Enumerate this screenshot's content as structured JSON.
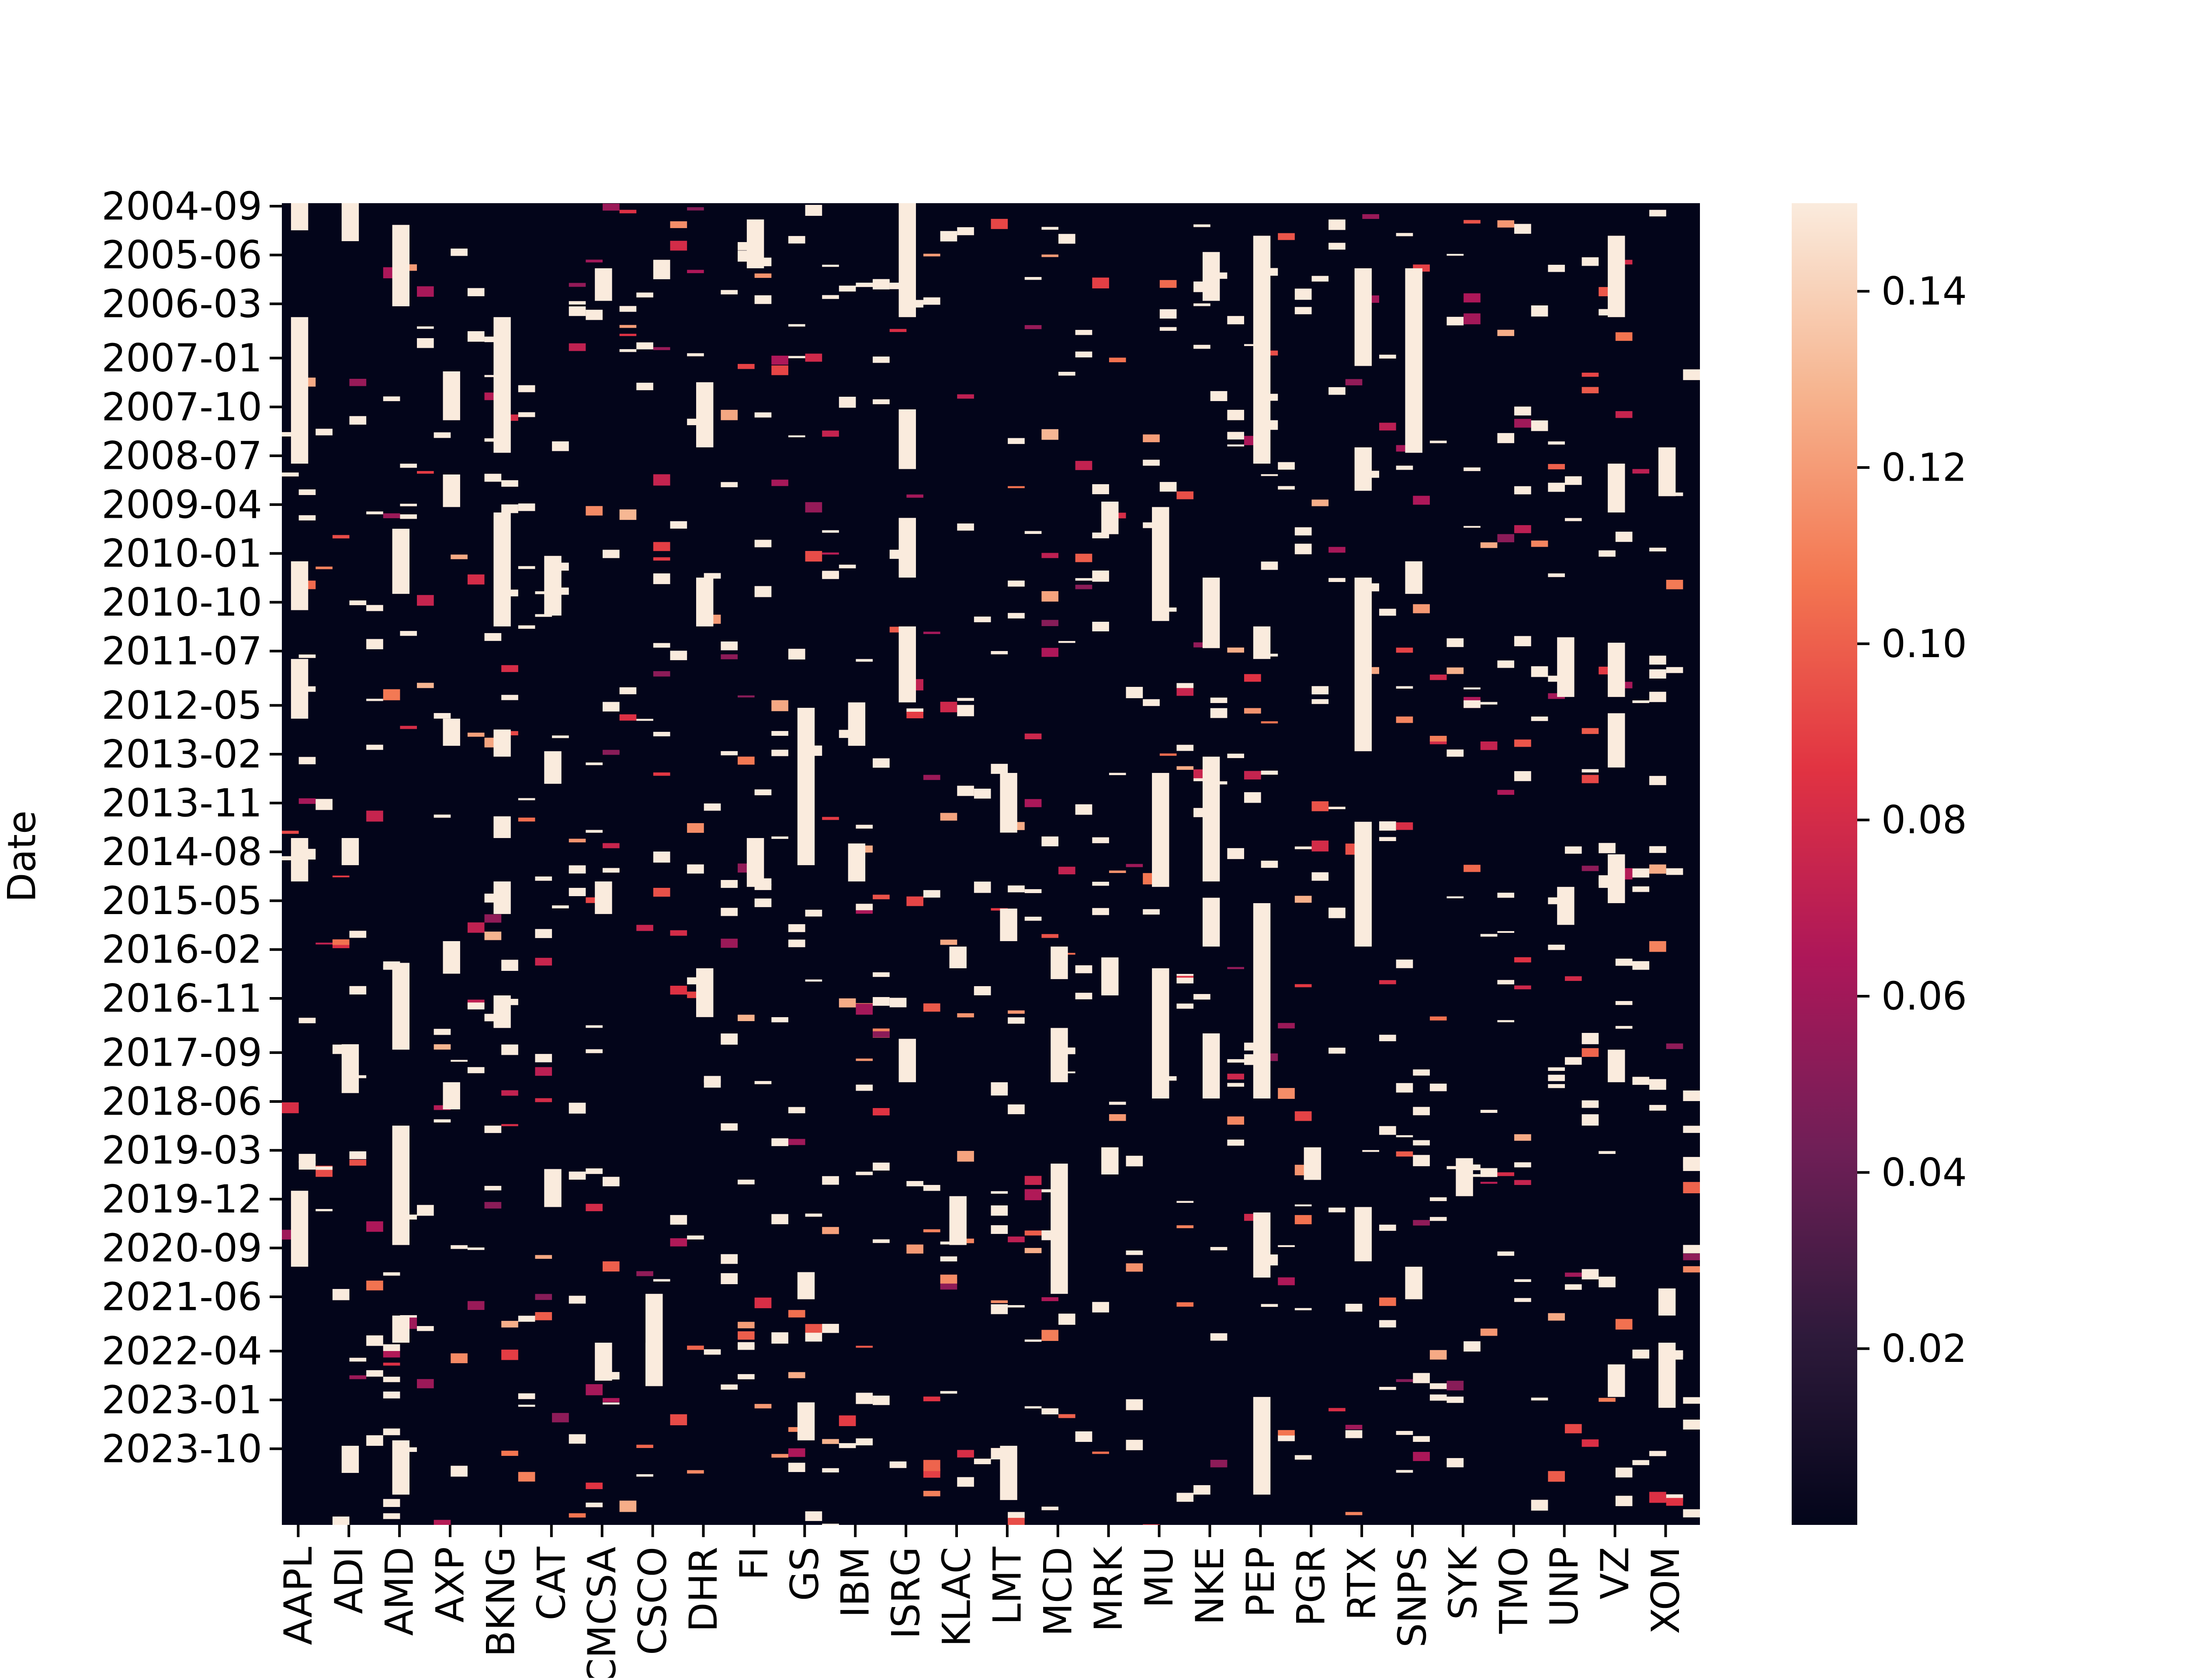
{
  "chart_data": {
    "type": "heatmap",
    "title": "",
    "xlabel": "",
    "ylabel": "Date",
    "x_tick_labels": [
      "AAPL",
      "ADI",
      "AMD",
      "AXP",
      "BKNG",
      "CAT",
      "CMCSA",
      "CSCO",
      "DHR",
      "FI",
      "GS",
      "IBM",
      "ISRG",
      "KLAC",
      "LMT",
      "MCD",
      "MRK",
      "MU",
      "NKE",
      "PEP",
      "PGR",
      "RTX",
      "SNPS",
      "SYK",
      "TMO",
      "UNP",
      "VZ",
      "XOM"
    ],
    "y_tick_labels": [
      "2004-09",
      "2005-06",
      "2006-03",
      "2007-01",
      "2007-10",
      "2008-07",
      "2009-04",
      "2010-01",
      "2010-10",
      "2011-07",
      "2012-05",
      "2013-02",
      "2013-11",
      "2014-08",
      "2015-05",
      "2016-02",
      "2016-11",
      "2017-09",
      "2018-06",
      "2019-03",
      "2019-12",
      "2020-09",
      "2021-06",
      "2022-04",
      "2023-01",
      "2023-10"
    ],
    "colorbar": {
      "ticks": [
        0.02,
        0.04,
        0.06,
        0.08,
        0.1,
        0.12,
        0.14
      ],
      "tick_labels": [
        "0.02",
        "0.04",
        "0.06",
        "0.08",
        "0.10",
        "0.12",
        "0.14"
      ],
      "vmin": 0.0,
      "vmax": 0.15,
      "colormap": "rocket",
      "colors": [
        "#03051a",
        "#2e1a3b",
        "#701f57",
        "#ad1759",
        "#e13342",
        "#f37651",
        "#f6b48f",
        "#faebdd"
      ]
    },
    "background_value": 0.0,
    "highlight_value": 0.15,
    "grid": false,
    "legend_placement": "colorbar-right",
    "features": [
      {
        "col": 0,
        "from": "2004-09",
        "to": "2005-02",
        "value": 0.15
      },
      {
        "col": 0,
        "from": "2006-06",
        "to": "2008-09",
        "value": 0.15
      },
      {
        "col": 0,
        "from": "2010-03",
        "to": "2010-12",
        "value": 0.15
      },
      {
        "col": 0,
        "from": "2011-09",
        "to": "2012-08",
        "value": 0.15
      },
      {
        "col": 0,
        "from": "2014-06",
        "to": "2015-02",
        "value": 0.15
      },
      {
        "col": 0,
        "from": "2019-11",
        "to": "2021-01",
        "value": 0.15
      },
      {
        "col": 1,
        "from": "2004-09",
        "to": "2005-04",
        "value": 0.15
      },
      {
        "col": 1,
        "from": "2014-06",
        "to": "2014-11",
        "value": 0.15
      },
      {
        "col": 1,
        "from": "2017-08",
        "to": "2018-05",
        "value": 0.15
      },
      {
        "col": 1,
        "from": "2023-10",
        "to": "2024-03",
        "value": 0.15
      },
      {
        "col": 2,
        "from": "2005-01",
        "to": "2006-04",
        "value": 0.15
      },
      {
        "col": 2,
        "from": "2009-09",
        "to": "2010-09",
        "value": 0.15
      },
      {
        "col": 2,
        "from": "2016-05",
        "to": "2017-09",
        "value": 0.15
      },
      {
        "col": 2,
        "from": "2018-11",
        "to": "2020-09",
        "value": 0.15
      },
      {
        "col": 2,
        "from": "2021-10",
        "to": "2022-03",
        "value": 0.15
      },
      {
        "col": 2,
        "from": "2023-09",
        "to": "2024-07",
        "value": 0.15
      },
      {
        "col": 3,
        "from": "2007-04",
        "to": "2008-01",
        "value": 0.15
      },
      {
        "col": 3,
        "from": "2008-11",
        "to": "2009-05",
        "value": 0.15
      },
      {
        "col": 3,
        "from": "2012-08",
        "to": "2013-01",
        "value": 0.15
      },
      {
        "col": 3,
        "from": "2016-01",
        "to": "2016-07",
        "value": 0.15
      },
      {
        "col": 3,
        "from": "2018-03",
        "to": "2018-08",
        "value": 0.15
      },
      {
        "col": 4,
        "from": "2006-06",
        "to": "2008-07",
        "value": 0.15
      },
      {
        "col": 4,
        "from": "2009-06",
        "to": "2011-03",
        "value": 0.15
      },
      {
        "col": 4,
        "from": "2012-10",
        "to": "2013-03",
        "value": 0.15
      },
      {
        "col": 4,
        "from": "2014-02",
        "to": "2014-06",
        "value": 0.15
      },
      {
        "col": 4,
        "from": "2015-02",
        "to": "2015-08",
        "value": 0.15
      },
      {
        "col": 4,
        "from": "2016-11",
        "to": "2017-05",
        "value": 0.15
      },
      {
        "col": 5,
        "from": "2010-02",
        "to": "2011-01",
        "value": 0.15
      },
      {
        "col": 5,
        "from": "2013-02",
        "to": "2013-08",
        "value": 0.15
      },
      {
        "col": 5,
        "from": "2019-07",
        "to": "2020-02",
        "value": 0.15
      },
      {
        "col": 6,
        "from": "2005-09",
        "to": "2006-03",
        "value": 0.15
      },
      {
        "col": 6,
        "from": "2015-02",
        "to": "2015-08",
        "value": 0.15
      },
      {
        "col": 6,
        "from": "2022-03",
        "to": "2022-10",
        "value": 0.15
      },
      {
        "col": 7,
        "from": "2021-06",
        "to": "2022-11",
        "value": 0.15
      },
      {
        "col": 7,
        "from": "2022-03",
        "to": "2022-11",
        "value": 0.15
      },
      {
        "col": 8,
        "from": "2007-06",
        "to": "2008-06",
        "value": 0.15
      },
      {
        "col": 8,
        "from": "2010-06",
        "to": "2011-03",
        "value": 0.15
      },
      {
        "col": 8,
        "from": "2016-06",
        "to": "2017-03",
        "value": 0.15
      },
      {
        "col": 9,
        "from": "2004-12",
        "to": "2005-09",
        "value": 0.15
      },
      {
        "col": 9,
        "from": "2014-06",
        "to": "2015-03",
        "value": 0.15
      },
      {
        "col": 10,
        "from": "2012-06",
        "to": "2014-11",
        "value": 0.15
      },
      {
        "col": 10,
        "from": "2021-02",
        "to": "2021-07",
        "value": 0.15
      },
      {
        "col": 10,
        "from": "2023-02",
        "to": "2023-09",
        "value": 0.15
      },
      {
        "col": 11,
        "from": "2012-05",
        "to": "2013-01",
        "value": 0.15
      },
      {
        "col": 11,
        "from": "2014-07",
        "to": "2015-02",
        "value": 0.15
      },
      {
        "col": 12,
        "from": "2004-09",
        "to": "2006-06",
        "value": 0.15
      },
      {
        "col": 12,
        "from": "2007-11",
        "to": "2008-10",
        "value": 0.15
      },
      {
        "col": 12,
        "from": "2009-07",
        "to": "2010-06",
        "value": 0.15
      },
      {
        "col": 12,
        "from": "2011-03",
        "to": "2012-05",
        "value": 0.15
      },
      {
        "col": 12,
        "from": "2017-07",
        "to": "2018-03",
        "value": 0.15
      },
      {
        "col": 13,
        "from": "2019-12",
        "to": "2020-09",
        "value": 0.15
      },
      {
        "col": 13,
        "from": "2016-02",
        "to": "2016-06",
        "value": 0.15
      },
      {
        "col": 14,
        "from": "2013-06",
        "to": "2014-05",
        "value": 0.15
      },
      {
        "col": 14,
        "from": "2015-07",
        "to": "2016-01",
        "value": 0.15
      },
      {
        "col": 14,
        "from": "2023-10",
        "to": "2024-08",
        "value": 0.15
      },
      {
        "col": 15,
        "from": "2016-02",
        "to": "2016-08",
        "value": 0.15
      },
      {
        "col": 15,
        "from": "2017-05",
        "to": "2018-03",
        "value": 0.15
      },
      {
        "col": 15,
        "from": "2019-06",
        "to": "2021-06",
        "value": 0.15
      },
      {
        "col": 16,
        "from": "2009-04",
        "to": "2009-10",
        "value": 0.15
      },
      {
        "col": 16,
        "from": "2016-04",
        "to": "2016-11",
        "value": 0.15
      },
      {
        "col": 16,
        "from": "2019-03",
        "to": "2019-08",
        "value": 0.15
      },
      {
        "col": 17,
        "from": "2009-05",
        "to": "2011-02",
        "value": 0.15
      },
      {
        "col": 17,
        "from": "2013-06",
        "to": "2015-03",
        "value": 0.15
      },
      {
        "col": 17,
        "from": "2016-06",
        "to": "2018-06",
        "value": 0.15
      },
      {
        "col": 18,
        "from": "2005-06",
        "to": "2006-03",
        "value": 0.15
      },
      {
        "col": 18,
        "from": "2010-06",
        "to": "2011-07",
        "value": 0.15
      },
      {
        "col": 18,
        "from": "2013-03",
        "to": "2015-02",
        "value": 0.15
      },
      {
        "col": 18,
        "from": "2015-05",
        "to": "2016-02",
        "value": 0.15
      },
      {
        "col": 18,
        "from": "2017-06",
        "to": "2018-06",
        "value": 0.15
      },
      {
        "col": 19,
        "from": "2005-03",
        "to": "2008-09",
        "value": 0.15
      },
      {
        "col": 19,
        "from": "2011-03",
        "to": "2011-09",
        "value": 0.15
      },
      {
        "col": 19,
        "from": "2015-06",
        "to": "2018-06",
        "value": 0.15
      },
      {
        "col": 19,
        "from": "2020-03",
        "to": "2021-03",
        "value": 0.15
      },
      {
        "col": 19,
        "from": "2023-01",
        "to": "2024-07",
        "value": 0.15
      },
      {
        "col": 20,
        "from": "2019-03",
        "to": "2019-09",
        "value": 0.15
      },
      {
        "col": 21,
        "from": "2005-09",
        "to": "2007-03",
        "value": 0.15
      },
      {
        "col": 21,
        "from": "2008-06",
        "to": "2009-02",
        "value": 0.15
      },
      {
        "col": 21,
        "from": "2010-06",
        "to": "2013-02",
        "value": 0.15
      },
      {
        "col": 21,
        "from": "2014-03",
        "to": "2016-02",
        "value": 0.15
      },
      {
        "col": 21,
        "from": "2020-02",
        "to": "2020-12",
        "value": 0.15
      },
      {
        "col": 22,
        "from": "2005-09",
        "to": "2008-07",
        "value": 0.15
      },
      {
        "col": 22,
        "from": "2010-03",
        "to": "2010-09",
        "value": 0.15
      },
      {
        "col": 22,
        "from": "2021-01",
        "to": "2021-07",
        "value": 0.15
      },
      {
        "col": 23,
        "from": "2019-05",
        "to": "2019-12",
        "value": 0.15
      },
      {
        "col": 25,
        "from": "2011-05",
        "to": "2012-04",
        "value": 0.15
      },
      {
        "col": 25,
        "from": "2015-03",
        "to": "2015-10",
        "value": 0.15
      },
      {
        "col": 26,
        "from": "2005-03",
        "to": "2006-06",
        "value": 0.15
      },
      {
        "col": 26,
        "from": "2008-09",
        "to": "2009-06",
        "value": 0.15
      },
      {
        "col": 26,
        "from": "2011-06",
        "to": "2012-04",
        "value": 0.15
      },
      {
        "col": 26,
        "from": "2012-07",
        "to": "2013-05",
        "value": 0.15
      },
      {
        "col": 26,
        "from": "2014-09",
        "to": "2015-06",
        "value": 0.15
      },
      {
        "col": 26,
        "from": "2017-09",
        "to": "2018-03",
        "value": 0.15
      },
      {
        "col": 26,
        "from": "2022-07",
        "to": "2023-01",
        "value": 0.15
      },
      {
        "col": 27,
        "from": "2008-06",
        "to": "2009-03",
        "value": 0.15
      },
      {
        "col": 27,
        "from": "2021-05",
        "to": "2021-10",
        "value": 0.15
      },
      {
        "col": 27,
        "from": "2022-03",
        "to": "2023-03",
        "value": 0.15
      }
    ]
  }
}
